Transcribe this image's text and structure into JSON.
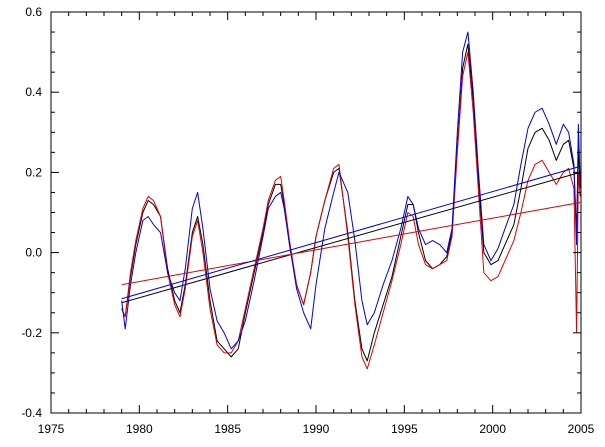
{
  "chart_data": {
    "type": "line",
    "title": "",
    "xlabel": "",
    "ylabel": "",
    "xlim": [
      1975,
      2005
    ],
    "ylim": [
      -0.4,
      0.6
    ],
    "grid": false,
    "x_ticks": [
      1975,
      1980,
      1985,
      1990,
      1995,
      2000,
      2005
    ],
    "x_tick_labels": [
      "1975",
      "1980",
      "1985",
      "1990",
      "1995",
      "2000",
      "2005"
    ],
    "y_ticks": [
      -0.4,
      -0.2,
      0.0,
      0.2,
      0.4,
      0.6
    ],
    "y_tick_labels": [
      "-0.4",
      "-0.2",
      "0.0",
      "0.2",
      "0.4",
      "0.6"
    ],
    "series": [
      {
        "name": "black",
        "color": "#000000",
        "points": [
          [
            1979.0,
            -0.14
          ],
          [
            1979.2,
            -0.16
          ],
          [
            1979.5,
            -0.06
          ],
          [
            1979.8,
            0.02
          ],
          [
            1980.2,
            0.1
          ],
          [
            1980.5,
            0.13
          ],
          [
            1980.8,
            0.12
          ],
          [
            1981.2,
            0.09
          ],
          [
            1981.6,
            -0.04
          ],
          [
            1982.0,
            -0.12
          ],
          [
            1982.3,
            -0.15
          ],
          [
            1982.6,
            -0.08
          ],
          [
            1983.0,
            0.05
          ],
          [
            1983.3,
            0.09
          ],
          [
            1983.6,
            0.02
          ],
          [
            1984.0,
            -0.12
          ],
          [
            1984.4,
            -0.22
          ],
          [
            1984.8,
            -0.24
          ],
          [
            1985.2,
            -0.26
          ],
          [
            1985.6,
            -0.24
          ],
          [
            1986.0,
            -0.15
          ],
          [
            1986.5,
            -0.05
          ],
          [
            1987.0,
            0.05
          ],
          [
            1987.3,
            0.12
          ],
          [
            1987.7,
            0.17
          ],
          [
            1988.0,
            0.17
          ],
          [
            1988.2,
            0.12
          ],
          [
            1988.5,
            0.02
          ],
          [
            1988.9,
            -0.08
          ],
          [
            1989.3,
            -0.13
          ],
          [
            1989.7,
            -0.05
          ],
          [
            1990.0,
            0.04
          ],
          [
            1990.5,
            0.13
          ],
          [
            1991.0,
            0.2
          ],
          [
            1991.3,
            0.21
          ],
          [
            1991.8,
            0.05
          ],
          [
            1992.2,
            -0.12
          ],
          [
            1992.6,
            -0.24
          ],
          [
            1992.9,
            -0.27
          ],
          [
            1993.3,
            -0.2
          ],
          [
            1993.8,
            -0.13
          ],
          [
            1994.3,
            -0.06
          ],
          [
            1994.8,
            0.04
          ],
          [
            1995.2,
            0.12
          ],
          [
            1995.5,
            0.12
          ],
          [
            1995.8,
            0.05
          ],
          [
            1996.2,
            -0.02
          ],
          [
            1996.6,
            -0.04
          ],
          [
            1997.0,
            -0.03
          ],
          [
            1997.4,
            -0.01
          ],
          [
            1997.7,
            0.05
          ],
          [
            1998.0,
            0.26
          ],
          [
            1998.3,
            0.46
          ],
          [
            1998.6,
            0.52
          ],
          [
            1998.9,
            0.38
          ],
          [
            1999.2,
            0.18
          ],
          [
            1999.5,
            0.0
          ],
          [
            1999.9,
            -0.03
          ],
          [
            2000.3,
            -0.02
          ],
          [
            2000.7,
            0.02
          ],
          [
            2001.2,
            0.07
          ],
          [
            2001.6,
            0.16
          ],
          [
            2002.0,
            0.26
          ],
          [
            2002.4,
            0.3
          ],
          [
            2002.8,
            0.31
          ],
          [
            2003.2,
            0.28
          ],
          [
            2003.6,
            0.23
          ],
          [
            2004.0,
            0.27
          ],
          [
            2004.3,
            0.28
          ],
          [
            2004.6,
            0.21
          ],
          [
            2004.75,
            0.05
          ],
          [
            2004.85,
            0.26
          ],
          [
            2004.95,
            0.16
          ]
        ]
      },
      {
        "name": "red",
        "color": "#e00000",
        "points": [
          [
            1979.0,
            -0.14
          ],
          [
            1979.2,
            -0.16
          ],
          [
            1979.5,
            -0.05
          ],
          [
            1979.8,
            0.03
          ],
          [
            1980.2,
            0.11
          ],
          [
            1980.5,
            0.14
          ],
          [
            1980.8,
            0.13
          ],
          [
            1981.2,
            0.09
          ],
          [
            1981.6,
            -0.05
          ],
          [
            1982.0,
            -0.13
          ],
          [
            1982.3,
            -0.16
          ],
          [
            1982.6,
            -0.09
          ],
          [
            1983.0,
            0.04
          ],
          [
            1983.3,
            0.08
          ],
          [
            1983.6,
            0.0
          ],
          [
            1984.0,
            -0.14
          ],
          [
            1984.4,
            -0.23
          ],
          [
            1984.8,
            -0.25
          ],
          [
            1985.2,
            -0.25
          ],
          [
            1985.6,
            -0.22
          ],
          [
            1986.0,
            -0.14
          ],
          [
            1986.5,
            -0.04
          ],
          [
            1987.0,
            0.06
          ],
          [
            1987.3,
            0.13
          ],
          [
            1987.7,
            0.18
          ],
          [
            1988.0,
            0.19
          ],
          [
            1988.2,
            0.13
          ],
          [
            1988.5,
            0.03
          ],
          [
            1988.9,
            -0.08
          ],
          [
            1989.3,
            -0.13
          ],
          [
            1989.7,
            -0.05
          ],
          [
            1990.0,
            0.04
          ],
          [
            1990.5,
            0.13
          ],
          [
            1991.0,
            0.21
          ],
          [
            1991.3,
            0.22
          ],
          [
            1991.8,
            0.04
          ],
          [
            1992.2,
            -0.13
          ],
          [
            1992.6,
            -0.26
          ],
          [
            1992.9,
            -0.29
          ],
          [
            1993.3,
            -0.23
          ],
          [
            1993.8,
            -0.15
          ],
          [
            1994.3,
            -0.07
          ],
          [
            1994.8,
            0.02
          ],
          [
            1995.2,
            0.1
          ],
          [
            1995.5,
            0.09
          ],
          [
            1995.8,
            0.02
          ],
          [
            1996.2,
            -0.03
          ],
          [
            1996.6,
            -0.04
          ],
          [
            1997.0,
            -0.03
          ],
          [
            1997.4,
            -0.02
          ],
          [
            1997.7,
            0.04
          ],
          [
            1998.0,
            0.25
          ],
          [
            1998.3,
            0.44
          ],
          [
            1998.6,
            0.5
          ],
          [
            1998.9,
            0.35
          ],
          [
            1999.2,
            0.15
          ],
          [
            1999.5,
            -0.05
          ],
          [
            1999.9,
            -0.07
          ],
          [
            2000.3,
            -0.06
          ],
          [
            2000.7,
            -0.02
          ],
          [
            2001.2,
            0.03
          ],
          [
            2001.6,
            0.1
          ],
          [
            2002.0,
            0.18
          ],
          [
            2002.4,
            0.22
          ],
          [
            2002.8,
            0.23
          ],
          [
            2003.2,
            0.2
          ],
          [
            2003.6,
            0.17
          ],
          [
            2004.0,
            0.2
          ],
          [
            2004.3,
            0.21
          ],
          [
            2004.6,
            0.16
          ],
          [
            2004.75,
            -0.2
          ],
          [
            2004.85,
            0.2
          ],
          [
            2004.95,
            0.14
          ]
        ]
      },
      {
        "name": "blue",
        "color": "#0000e0",
        "points": [
          [
            1979.0,
            -0.12
          ],
          [
            1979.2,
            -0.19
          ],
          [
            1979.5,
            -0.08
          ],
          [
            1979.8,
            0.0
          ],
          [
            1980.2,
            0.08
          ],
          [
            1980.5,
            0.09
          ],
          [
            1980.8,
            0.07
          ],
          [
            1981.2,
            0.05
          ],
          [
            1981.6,
            -0.05
          ],
          [
            1982.0,
            -0.1
          ],
          [
            1982.3,
            -0.12
          ],
          [
            1982.6,
            -0.04
          ],
          [
            1983.0,
            0.11
          ],
          [
            1983.3,
            0.15
          ],
          [
            1983.6,
            0.06
          ],
          [
            1984.0,
            -0.09
          ],
          [
            1984.4,
            -0.17
          ],
          [
            1984.8,
            -0.2
          ],
          [
            1985.2,
            -0.24
          ],
          [
            1985.6,
            -0.22
          ],
          [
            1986.0,
            -0.17
          ],
          [
            1986.5,
            -0.07
          ],
          [
            1987.0,
            0.04
          ],
          [
            1987.3,
            0.11
          ],
          [
            1987.7,
            0.14
          ],
          [
            1988.0,
            0.15
          ],
          [
            1988.2,
            0.11
          ],
          [
            1988.5,
            0.02
          ],
          [
            1988.9,
            -0.09
          ],
          [
            1989.3,
            -0.15
          ],
          [
            1989.7,
            -0.19
          ],
          [
            1990.0,
            -0.08
          ],
          [
            1990.5,
            0.06
          ],
          [
            1991.0,
            0.15
          ],
          [
            1991.3,
            0.2
          ],
          [
            1991.8,
            0.15
          ],
          [
            1992.2,
            0.03
          ],
          [
            1992.6,
            -0.12
          ],
          [
            1992.9,
            -0.18
          ],
          [
            1993.3,
            -0.15
          ],
          [
            1993.8,
            -0.08
          ],
          [
            1994.3,
            -0.02
          ],
          [
            1994.8,
            0.06
          ],
          [
            1995.2,
            0.14
          ],
          [
            1995.5,
            0.12
          ],
          [
            1995.8,
            0.06
          ],
          [
            1996.2,
            0.02
          ],
          [
            1996.6,
            0.03
          ],
          [
            1997.0,
            0.02
          ],
          [
            1997.4,
            0.0
          ],
          [
            1997.7,
            0.06
          ],
          [
            1998.0,
            0.3
          ],
          [
            1998.3,
            0.5
          ],
          [
            1998.6,
            0.55
          ],
          [
            1998.9,
            0.4
          ],
          [
            1999.2,
            0.2
          ],
          [
            1999.5,
            0.02
          ],
          [
            1999.9,
            -0.02
          ],
          [
            2000.3,
            0.01
          ],
          [
            2000.7,
            0.06
          ],
          [
            2001.2,
            0.12
          ],
          [
            2001.6,
            0.22
          ],
          [
            2002.0,
            0.31
          ],
          [
            2002.4,
            0.35
          ],
          [
            2002.8,
            0.36
          ],
          [
            2003.2,
            0.32
          ],
          [
            2003.6,
            0.27
          ],
          [
            2004.0,
            0.32
          ],
          [
            2004.3,
            0.3
          ],
          [
            2004.6,
            0.22
          ],
          [
            2004.75,
            0.02
          ],
          [
            2004.85,
            0.32
          ],
          [
            2004.95,
            0.18
          ]
        ]
      }
    ],
    "trend_lines": [
      {
        "name": "black-trend",
        "color": "#000000",
        "x": [
          1979.0,
          2004.95
        ],
        "y": [
          -0.125,
          0.2
        ]
      },
      {
        "name": "red-trend",
        "color": "#e00000",
        "x": [
          1979.0,
          2004.95
        ],
        "y": [
          -0.08,
          0.125
        ]
      },
      {
        "name": "blue-trend",
        "color": "#0000e0",
        "x": [
          1979.0,
          2004.95
        ],
        "y": [
          -0.115,
          0.215
        ]
      }
    ]
  }
}
